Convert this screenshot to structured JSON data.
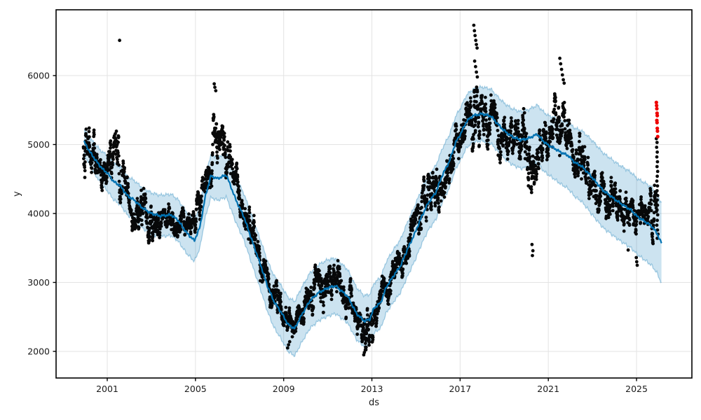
{
  "chart_data": {
    "type": "line",
    "title": "",
    "xlabel": "ds",
    "ylabel": "y",
    "grid": true,
    "legend": "none",
    "xlim": [
      1998.68,
      2027.51
    ],
    "ylim": [
      1614,
      6954
    ],
    "x_ticks": [
      2001,
      2005,
      2009,
      2013,
      2017,
      2021,
      2025
    ],
    "y_ticks": [
      2000,
      3000,
      4000,
      5000,
      6000
    ],
    "colors": {
      "trend": "#0072B2",
      "band_fill": "rgba(0,114,178,0.20)",
      "band_edge": "rgba(0,114,178,0.32)",
      "observations": "#000000",
      "anomalies": "#ee0000",
      "grid": "#e3e3e3",
      "spine": "#000000"
    },
    "series": [
      {
        "name": "trend-forecast-yhat",
        "kind": "line",
        "points": [
          [
            1999.95,
            5040
          ],
          [
            2000.2,
            4900
          ],
          [
            2000.5,
            4760
          ],
          [
            2000.8,
            4640
          ],
          [
            2001.0,
            4590
          ],
          [
            2001.3,
            4460
          ],
          [
            2001.6,
            4400
          ],
          [
            2001.9,
            4260
          ],
          [
            2002.2,
            4200
          ],
          [
            2002.6,
            4080
          ],
          [
            2003.0,
            4000
          ],
          [
            2003.4,
            3965
          ],
          [
            2003.9,
            3980
          ],
          [
            2004.2,
            3905
          ],
          [
            2004.6,
            3720
          ],
          [
            2004.95,
            3605
          ],
          [
            2005.2,
            3800
          ],
          [
            2005.45,
            4250
          ],
          [
            2005.7,
            4545
          ],
          [
            2006.0,
            4505
          ],
          [
            2006.4,
            4560
          ],
          [
            2006.85,
            4185
          ],
          [
            2007.2,
            3950
          ],
          [
            2007.6,
            3575
          ],
          [
            2008.0,
            3210
          ],
          [
            2008.25,
            2960
          ],
          [
            2008.55,
            2730
          ],
          [
            2008.9,
            2560
          ],
          [
            2009.2,
            2390
          ],
          [
            2009.5,
            2330
          ],
          [
            2009.8,
            2520
          ],
          [
            2010.2,
            2740
          ],
          [
            2010.6,
            2855
          ],
          [
            2011.0,
            2920
          ],
          [
            2011.35,
            2950
          ],
          [
            2011.9,
            2800
          ],
          [
            2012.3,
            2550
          ],
          [
            2012.65,
            2440
          ],
          [
            2012.9,
            2465
          ],
          [
            2013.1,
            2630
          ],
          [
            2013.4,
            2705
          ],
          [
            2013.65,
            2930
          ],
          [
            2014.0,
            3105
          ],
          [
            2014.3,
            3240
          ],
          [
            2014.6,
            3470
          ],
          [
            2014.95,
            3715
          ],
          [
            2015.25,
            3950
          ],
          [
            2015.55,
            4150
          ],
          [
            2015.9,
            4305
          ],
          [
            2016.2,
            4560
          ],
          [
            2016.5,
            4745
          ],
          [
            2016.8,
            5030
          ],
          [
            2017.0,
            5140
          ],
          [
            2017.3,
            5340
          ],
          [
            2017.6,
            5420
          ],
          [
            2018.0,
            5445
          ],
          [
            2018.4,
            5410
          ],
          [
            2018.7,
            5300
          ],
          [
            2019.0,
            5200
          ],
          [
            2019.35,
            5115
          ],
          [
            2019.75,
            5065
          ],
          [
            2020.1,
            5090
          ],
          [
            2020.5,
            5150
          ],
          [
            2020.8,
            5040
          ],
          [
            2021.0,
            4990
          ],
          [
            2021.25,
            4950
          ],
          [
            2021.55,
            4890
          ],
          [
            2021.9,
            4840
          ],
          [
            2022.2,
            4740
          ],
          [
            2022.5,
            4690
          ],
          [
            2022.8,
            4590
          ],
          [
            2023.15,
            4460
          ],
          [
            2023.5,
            4330
          ],
          [
            2023.8,
            4260
          ],
          [
            2024.1,
            4185
          ],
          [
            2024.4,
            4120
          ],
          [
            2024.75,
            4050
          ],
          [
            2025.05,
            3950
          ],
          [
            2025.4,
            3880
          ],
          [
            2025.7,
            3810
          ],
          [
            2025.95,
            3700
          ],
          [
            2026.05,
            3620
          ],
          [
            2026.15,
            3565
          ]
        ]
      },
      {
        "name": "uncertainty-band",
        "kind": "band",
        "half_width": [
          [
            1999.95,
            180
          ],
          [
            2001,
            260
          ],
          [
            2003,
            300
          ],
          [
            2005,
            300
          ],
          [
            2007,
            330
          ],
          [
            2009,
            390
          ],
          [
            2011,
            410
          ],
          [
            2013,
            360
          ],
          [
            2015,
            400
          ],
          [
            2017,
            380
          ],
          [
            2019,
            400
          ],
          [
            2021,
            430
          ],
          [
            2023,
            540
          ],
          [
            2025,
            550
          ],
          [
            2026.15,
            580
          ]
        ]
      },
      {
        "name": "observations",
        "kind": "scatter-cloud",
        "start": 1999.92,
        "end": 2025.9,
        "step_days": 2.5,
        "seed": 42,
        "cloud": [
          [
            1999.95,
            5050,
            450
          ],
          [
            2000.4,
            4850,
            400
          ],
          [
            2000.8,
            4510,
            320
          ],
          [
            2001.1,
            4600,
            420
          ],
          [
            2001.5,
            4950,
            620
          ],
          [
            2001.8,
            4430,
            380
          ],
          [
            2002.2,
            4120,
            360
          ],
          [
            2002.7,
            3930,
            360
          ],
          [
            2003.1,
            3790,
            380
          ],
          [
            2003.6,
            3900,
            260
          ],
          [
            2004.0,
            3900,
            260
          ],
          [
            2004.5,
            3760,
            260
          ],
          [
            2005.0,
            3790,
            320
          ],
          [
            2005.5,
            4420,
            380
          ],
          [
            2005.9,
            5150,
            500
          ],
          [
            2006.3,
            5000,
            420
          ],
          [
            2006.8,
            4420,
            380
          ],
          [
            2007.3,
            3930,
            380
          ],
          [
            2007.8,
            3520,
            360
          ],
          [
            2008.2,
            3060,
            340
          ],
          [
            2008.5,
            2770,
            340
          ],
          [
            2008.8,
            2630,
            320
          ],
          [
            2009.1,
            2390,
            300
          ],
          [
            2009.6,
            2530,
            300
          ],
          [
            2010.1,
            2720,
            320
          ],
          [
            2010.6,
            2930,
            360
          ],
          [
            2011.1,
            3120,
            420
          ],
          [
            2011.6,
            3030,
            360
          ],
          [
            2012.1,
            2630,
            320
          ],
          [
            2012.6,
            2330,
            360
          ],
          [
            2013.0,
            2470,
            360
          ],
          [
            2013.5,
            2830,
            320
          ],
          [
            2014.0,
            3120,
            320
          ],
          [
            2014.5,
            3430,
            320
          ],
          [
            2015.0,
            3830,
            360
          ],
          [
            2015.5,
            4230,
            360
          ],
          [
            2016.0,
            4230,
            480
          ],
          [
            2016.5,
            4630,
            360
          ],
          [
            2017.0,
            5120,
            420
          ],
          [
            2017.5,
            5420,
            460
          ],
          [
            2017.8,
            5640,
            580
          ],
          [
            2018.2,
            5490,
            460
          ],
          [
            2018.6,
            5290,
            460
          ],
          [
            2019.0,
            4930,
            460
          ],
          [
            2019.5,
            5090,
            360
          ],
          [
            2020.0,
            5180,
            360
          ],
          [
            2020.25,
            4470,
            750
          ],
          [
            2020.6,
            4890,
            420
          ],
          [
            2021.0,
            5010,
            420
          ],
          [
            2021.5,
            5470,
            550
          ],
          [
            2021.9,
            5090,
            420
          ],
          [
            2022.3,
            4730,
            420
          ],
          [
            2022.8,
            4530,
            400
          ],
          [
            2023.3,
            4430,
            360
          ],
          [
            2023.8,
            4270,
            360
          ],
          [
            2024.3,
            4130,
            360
          ],
          [
            2024.8,
            4010,
            360
          ],
          [
            2025.2,
            3870,
            320
          ],
          [
            2025.55,
            3910,
            340
          ],
          [
            2025.9,
            4150,
            520
          ]
        ],
        "outliers": [
          [
            2001.56,
            6510
          ],
          [
            2005.85,
            5880
          ],
          [
            2005.88,
            5830
          ],
          [
            2005.92,
            5780
          ],
          [
            2009.18,
            2050
          ],
          [
            2009.22,
            2095
          ],
          [
            2009.27,
            2140
          ],
          [
            2012.63,
            1950
          ],
          [
            2012.66,
            1985
          ],
          [
            2012.7,
            2020
          ],
          [
            2012.74,
            2060
          ],
          [
            2017.62,
            6730
          ],
          [
            2017.65,
            6650
          ],
          [
            2017.68,
            6580
          ],
          [
            2017.71,
            6510
          ],
          [
            2017.74,
            6450
          ],
          [
            2017.77,
            6400
          ],
          [
            2017.66,
            6210
          ],
          [
            2017.7,
            6130
          ],
          [
            2017.74,
            6050
          ],
          [
            2017.78,
            5980
          ],
          [
            2019.88,
            5520
          ],
          [
            2019.92,
            5460
          ],
          [
            2020.26,
            3550
          ],
          [
            2020.28,
            3390
          ],
          [
            2020.3,
            3460
          ],
          [
            2021.52,
            6250
          ],
          [
            2021.56,
            6170
          ],
          [
            2021.6,
            6090
          ],
          [
            2021.64,
            6010
          ],
          [
            2021.68,
            5940
          ],
          [
            2021.72,
            5890
          ],
          [
            2024.62,
            3470
          ],
          [
            2024.99,
            3360
          ],
          [
            2025.01,
            3300
          ],
          [
            2025.03,
            3250
          ]
        ],
        "final_column": [
          [
            2025.9,
            5085
          ],
          [
            2025.93,
            5030
          ],
          [
            2025.91,
            4960
          ],
          [
            2025.94,
            4890
          ],
          [
            2025.92,
            4820
          ],
          [
            2025.95,
            4750
          ],
          [
            2025.93,
            4680
          ],
          [
            2025.96,
            4610
          ],
          [
            2025.94,
            4540
          ],
          [
            2025.92,
            4470
          ],
          [
            2025.95,
            4400
          ],
          [
            2025.93,
            4330
          ],
          [
            2025.96,
            4260
          ],
          [
            2025.94,
            4195
          ],
          [
            2025.95,
            4120
          ],
          [
            2025.93,
            4050
          ],
          [
            2025.96,
            3980
          ],
          [
            2025.94,
            3900
          ],
          [
            2025.92,
            3830
          ],
          [
            2025.95,
            3760
          ],
          [
            2025.97,
            3700
          ],
          [
            2025.94,
            3640
          ]
        ]
      },
      {
        "name": "anomaly-points-red",
        "kind": "scatter",
        "points": [
          [
            2025.9,
            5610
          ],
          [
            2025.91,
            5565
          ],
          [
            2025.92,
            5520
          ],
          [
            2025.93,
            5455
          ],
          [
            2025.94,
            5420
          ],
          [
            2025.92,
            5350
          ],
          [
            2025.93,
            5318
          ],
          [
            2025.94,
            5235
          ],
          [
            2025.95,
            5195
          ],
          [
            2025.96,
            5115
          ]
        ]
      }
    ]
  }
}
